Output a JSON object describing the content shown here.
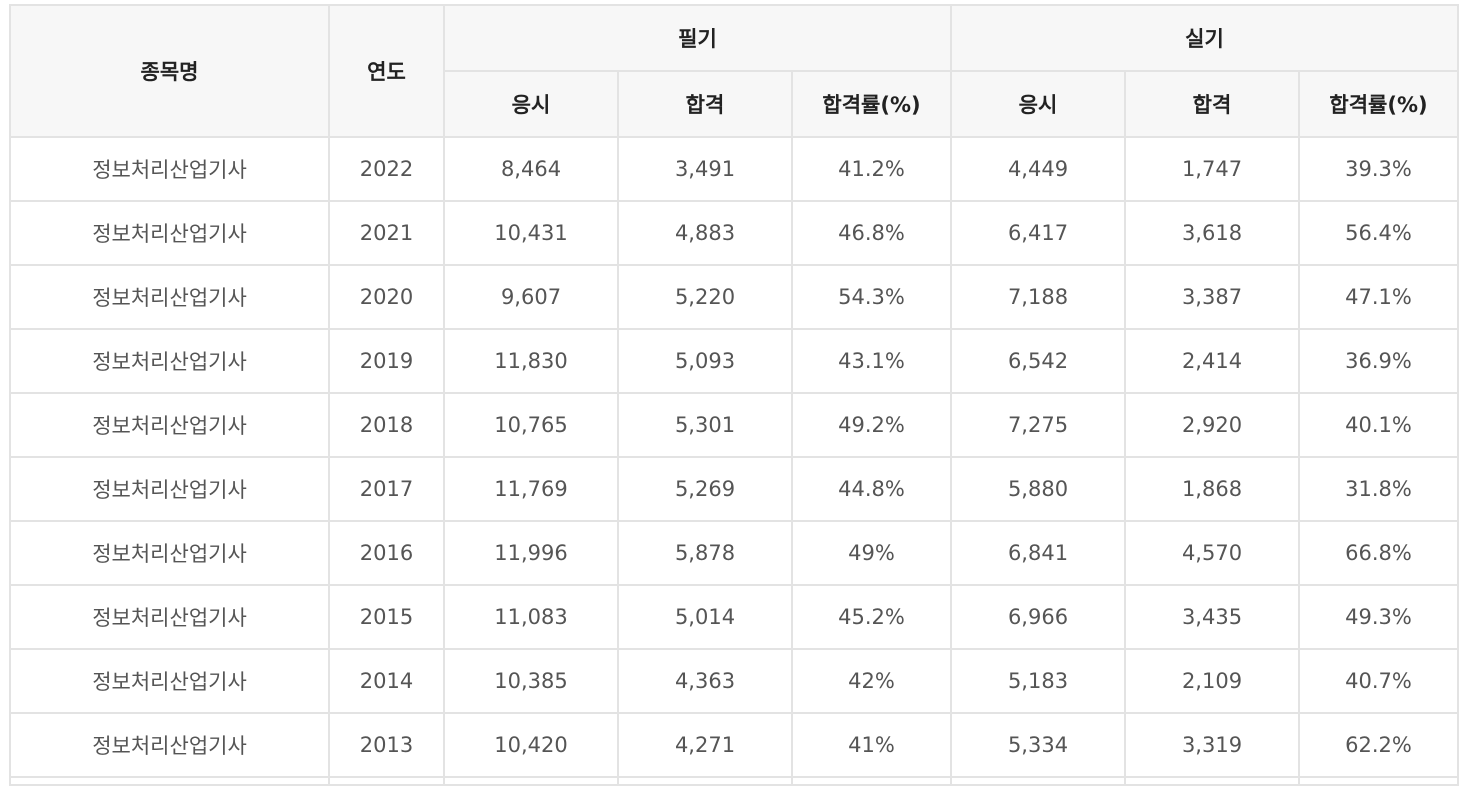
{
  "table": {
    "headers": {
      "name": "종목명",
      "year": "연도",
      "written": "필기",
      "practical": "실기",
      "written_sub": [
        "응시",
        "합격",
        "합격률(%)"
      ],
      "practical_sub": [
        "응시",
        "합격",
        "합격률(%)"
      ]
    },
    "rows": [
      {
        "name": "정보처리산업기사",
        "year": "2022",
        "w_apply": "8,464",
        "w_pass": "3,491",
        "w_rate": "41.2%",
        "p_apply": "4,449",
        "p_pass": "1,747",
        "p_rate": "39.3%"
      },
      {
        "name": "정보처리산업기사",
        "year": "2021",
        "w_apply": "10,431",
        "w_pass": "4,883",
        "w_rate": "46.8%",
        "p_apply": "6,417",
        "p_pass": "3,618",
        "p_rate": "56.4%"
      },
      {
        "name": "정보처리산업기사",
        "year": "2020",
        "w_apply": "9,607",
        "w_pass": "5,220",
        "w_rate": "54.3%",
        "p_apply": "7,188",
        "p_pass": "3,387",
        "p_rate": "47.1%"
      },
      {
        "name": "정보처리산업기사",
        "year": "2019",
        "w_apply": "11,830",
        "w_pass": "5,093",
        "w_rate": "43.1%",
        "p_apply": "6,542",
        "p_pass": "2,414",
        "p_rate": "36.9%"
      },
      {
        "name": "정보처리산업기사",
        "year": "2018",
        "w_apply": "10,765",
        "w_pass": "5,301",
        "w_rate": "49.2%",
        "p_apply": "7,275",
        "p_pass": "2,920",
        "p_rate": "40.1%"
      },
      {
        "name": "정보처리산업기사",
        "year": "2017",
        "w_apply": "11,769",
        "w_pass": "5,269",
        "w_rate": "44.8%",
        "p_apply": "5,880",
        "p_pass": "1,868",
        "p_rate": "31.8%"
      },
      {
        "name": "정보처리산업기사",
        "year": "2016",
        "w_apply": "11,996",
        "w_pass": "5,878",
        "w_rate": "49%",
        "p_apply": "6,841",
        "p_pass": "4,570",
        "p_rate": "66.8%"
      },
      {
        "name": "정보처리산업기사",
        "year": "2015",
        "w_apply": "11,083",
        "w_pass": "5,014",
        "w_rate": "45.2%",
        "p_apply": "6,966",
        "p_pass": "3,435",
        "p_rate": "49.3%"
      },
      {
        "name": "정보처리산업기사",
        "year": "2014",
        "w_apply": "10,385",
        "w_pass": "4,363",
        "w_rate": "42%",
        "p_apply": "5,183",
        "p_pass": "2,109",
        "p_rate": "40.7%"
      },
      {
        "name": "정보처리산업기사",
        "year": "2013",
        "w_apply": "10,420",
        "w_pass": "4,271",
        "w_rate": "41%",
        "p_apply": "5,334",
        "p_pass": "3,319",
        "p_rate": "62.2%"
      }
    ]
  }
}
